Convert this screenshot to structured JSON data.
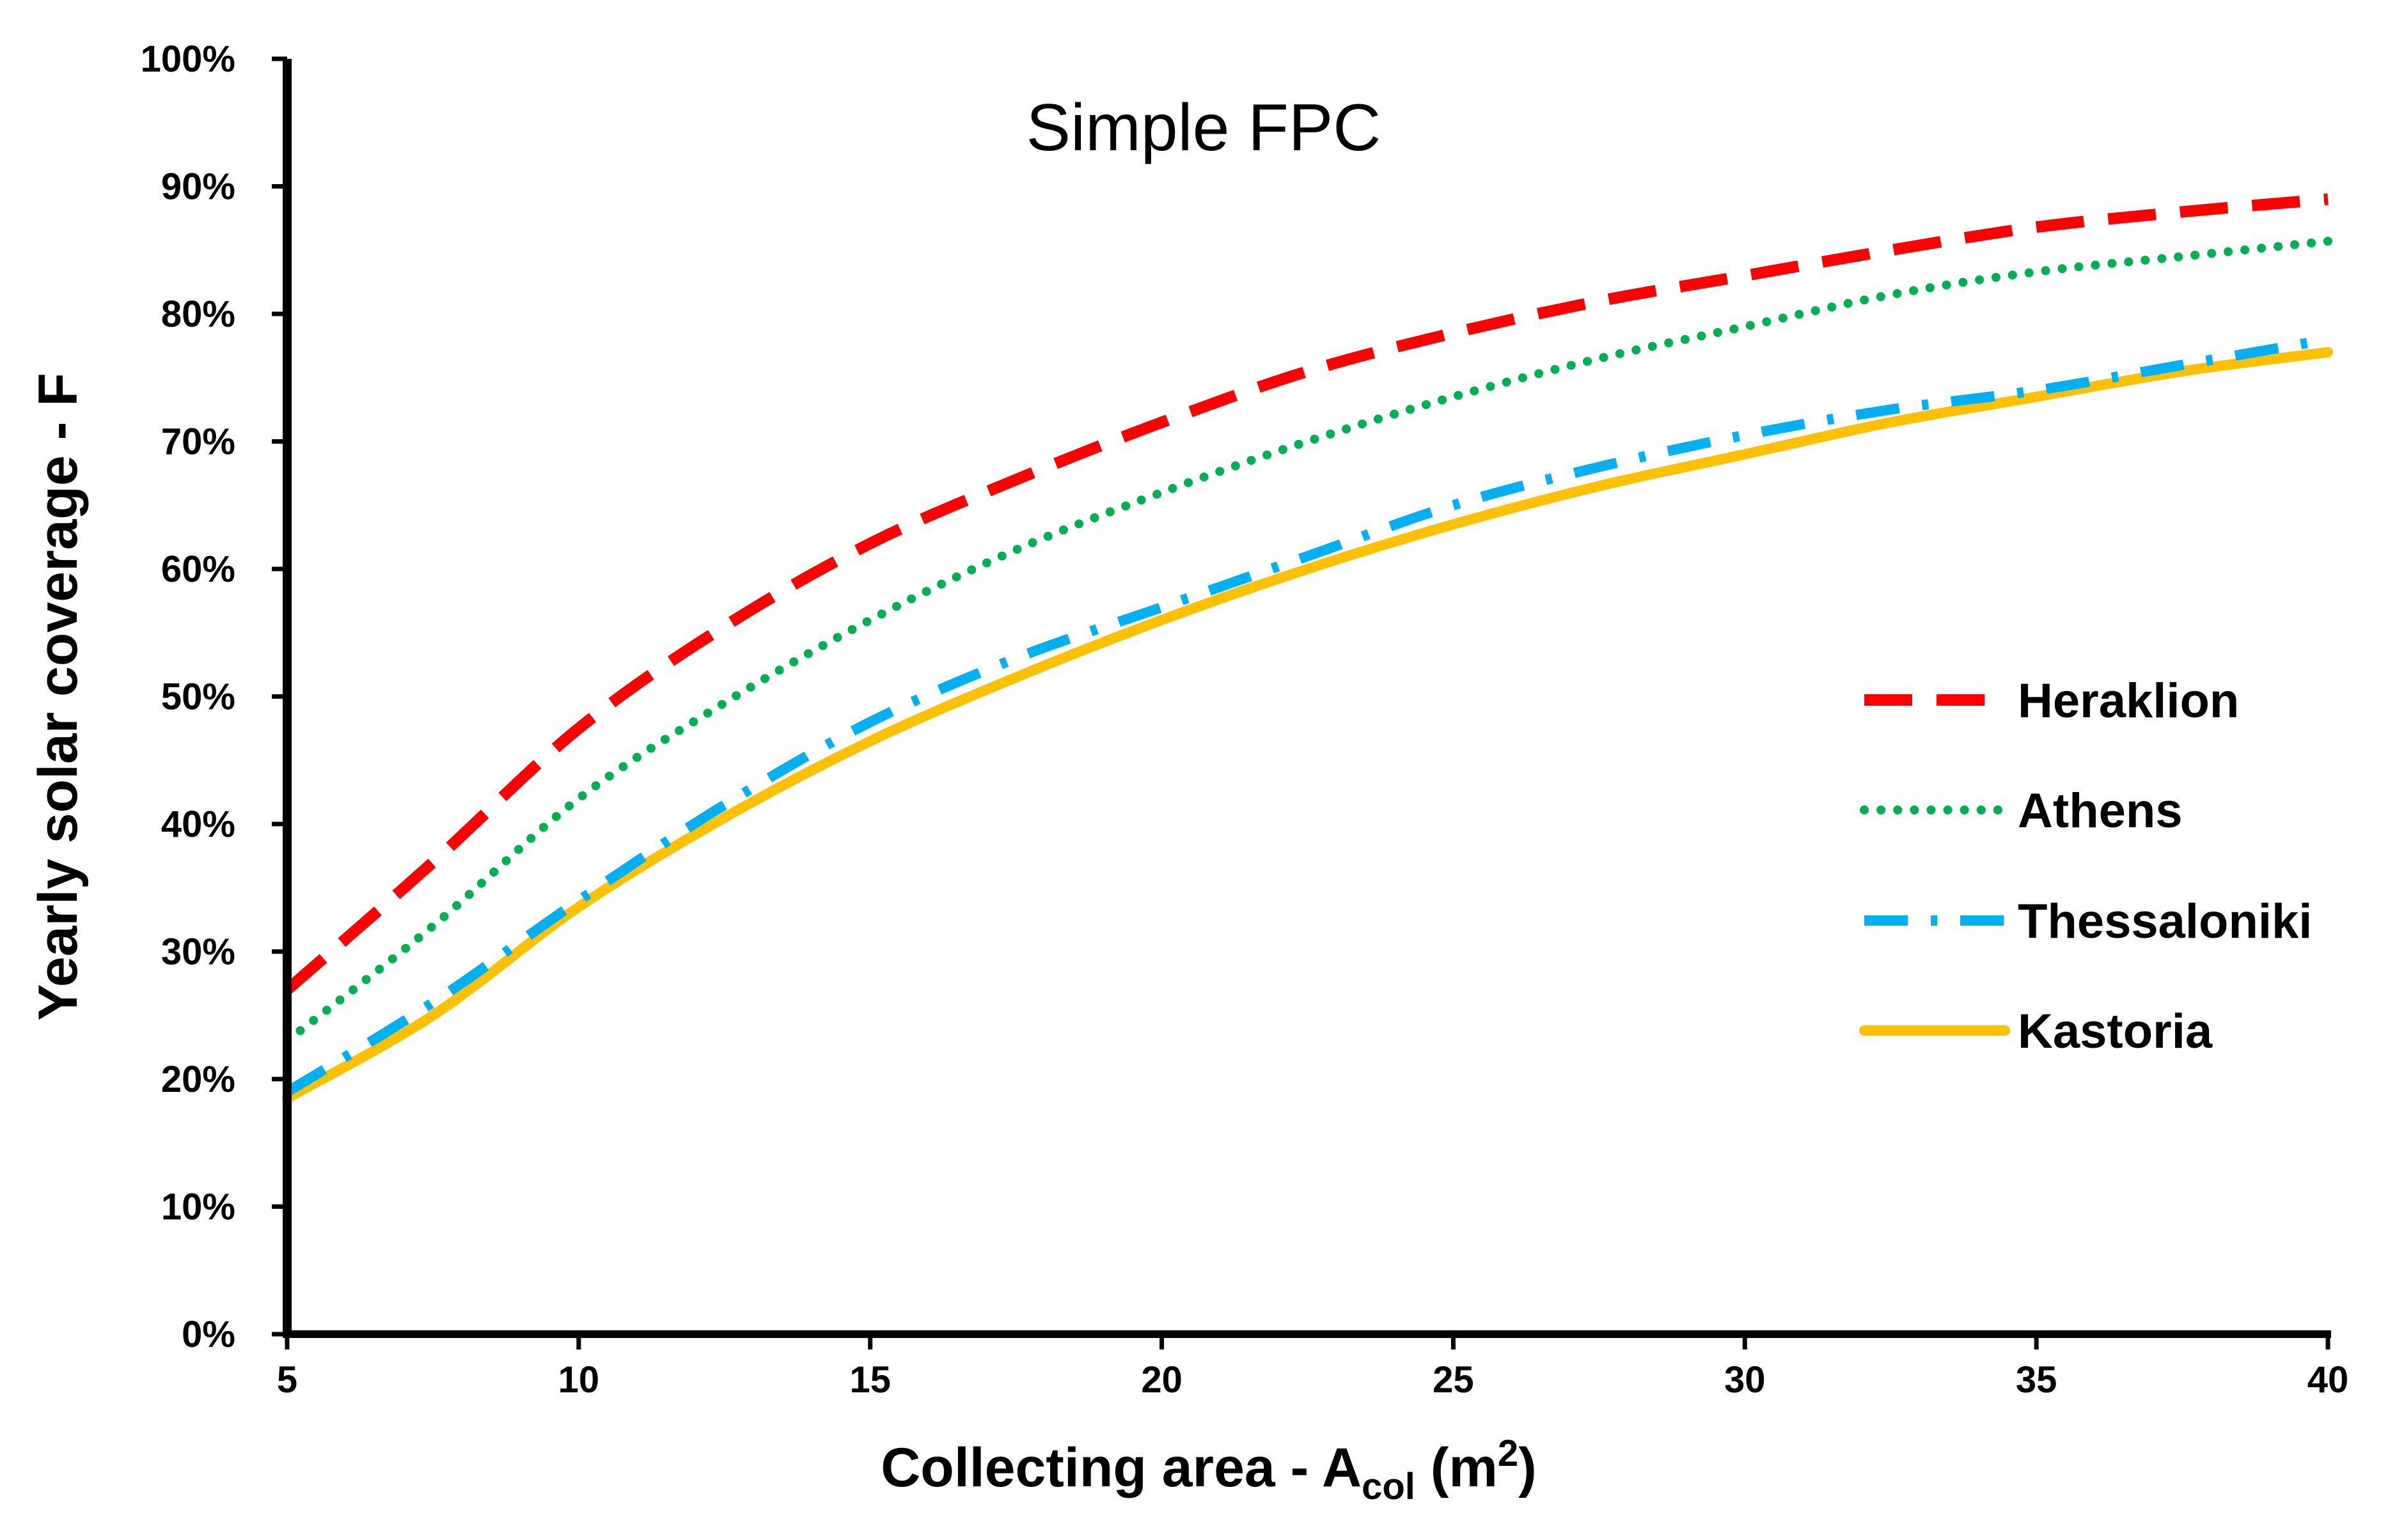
{
  "chart_data": {
    "type": "line",
    "title": "Simple FPC",
    "xlabel": {
      "prefix": "Collecting area - A",
      "subscript": "col",
      "unit_open": " (m",
      "unit_sup": "2",
      "unit_close": ")"
    },
    "ylabel": "Yearly solar coverage - F",
    "xlim": [
      5,
      40
    ],
    "ylim": [
      0,
      100
    ],
    "x_ticks": [
      5,
      10,
      15,
      20,
      25,
      30,
      35,
      40
    ],
    "y_ticks": [
      0,
      10,
      20,
      30,
      40,
      50,
      60,
      70,
      80,
      90,
      100
    ],
    "y_tick_labels": [
      "0%",
      "10%",
      "20%",
      "30%",
      "40%",
      "50%",
      "60%",
      "70%",
      "80%",
      "90%",
      "100%"
    ],
    "legend_position": "right",
    "grid": false,
    "x": [
      5,
      7.5,
      10,
      12.5,
      15,
      17.5,
      20,
      22.5,
      25,
      27.5,
      30,
      32.5,
      35,
      37.5,
      40
    ],
    "series": [
      {
        "name": "Heraklion",
        "color": "#ff0000",
        "style": "dash",
        "values": [
          27,
          37,
          47.5,
          55.5,
          62,
          67,
          71.5,
          75.5,
          78.5,
          81,
          83,
          85,
          86.8,
          88,
          89
        ]
      },
      {
        "name": "Athens",
        "color": "#00b050",
        "style": "dot",
        "values": [
          23,
          32,
          42,
          49.5,
          56,
          61.5,
          66,
          70,
          73.5,
          76.5,
          79,
          81.5,
          83.3,
          84.5,
          85.7
        ]
      },
      {
        "name": "Thessaloniki",
        "color": "#00b0f0",
        "style": "dashdot",
        "values": [
          19,
          26,
          34,
          41.5,
          48,
          53,
          57,
          61,
          65,
          68,
          70.5,
          72.5,
          74,
          76,
          78
        ]
      },
      {
        "name": "Kastoria",
        "color": "#ffc000",
        "style": "solid",
        "values": [
          18.5,
          25,
          33.5,
          40.5,
          46.5,
          51.5,
          56,
          60,
          63.5,
          66.5,
          69,
          71.5,
          73.5,
          75.5,
          77
        ]
      }
    ]
  }
}
